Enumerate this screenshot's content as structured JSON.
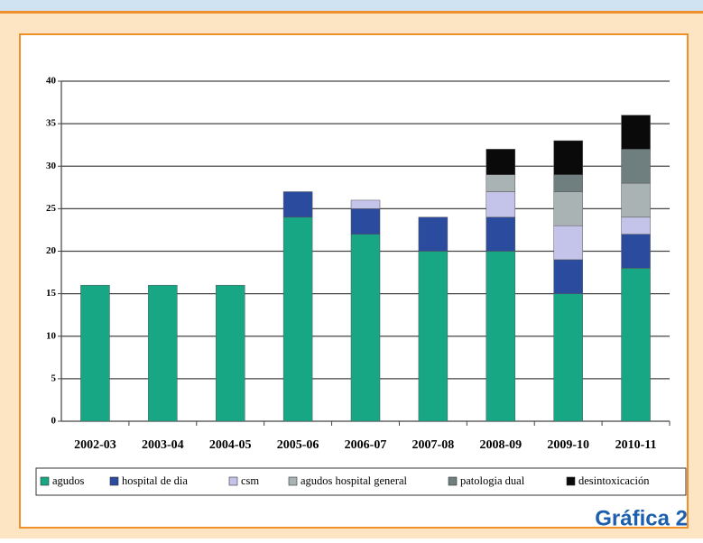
{
  "chart_data": {
    "type": "stacked_bar",
    "categories": [
      "2002-03",
      "2003-04",
      "2004-05",
      "2005-06",
      "2006-07",
      "2007-08",
      "2008-09",
      "2009-10",
      "2010-11"
    ],
    "series": [
      {
        "name": "agudos",
        "color": "#17a785",
        "values": [
          16,
          16,
          16,
          24,
          22,
          20,
          20,
          15,
          18
        ]
      },
      {
        "name": "hospital de dia",
        "color": "#2a4b9e",
        "values": [
          0,
          0,
          0,
          3,
          3,
          4,
          4,
          4,
          4
        ]
      },
      {
        "name": "csm",
        "color": "#c4c4ea",
        "values": [
          0,
          0,
          0,
          0,
          1,
          0,
          3,
          4,
          2
        ]
      },
      {
        "name": "agudos hospital general",
        "color": "#a9b3b3",
        "values": [
          0,
          0,
          0,
          0,
          0,
          0,
          2,
          4,
          4
        ]
      },
      {
        "name": "patologia dual",
        "color": "#6f7f7f",
        "values": [
          0,
          0,
          0,
          0,
          0,
          0,
          0,
          2,
          4
        ]
      },
      {
        "name": "desintoxicación",
        "color": "#0a0a0a",
        "values": [
          0,
          0,
          0,
          0,
          0,
          0,
          3,
          4,
          4
        ]
      }
    ],
    "ylim": [
      0,
      40
    ],
    "yticks": [
      0,
      5,
      10,
      15,
      20,
      25,
      30,
      35,
      40
    ],
    "grid": true,
    "legend": "bottom",
    "caption": "Gráfica 2"
  }
}
